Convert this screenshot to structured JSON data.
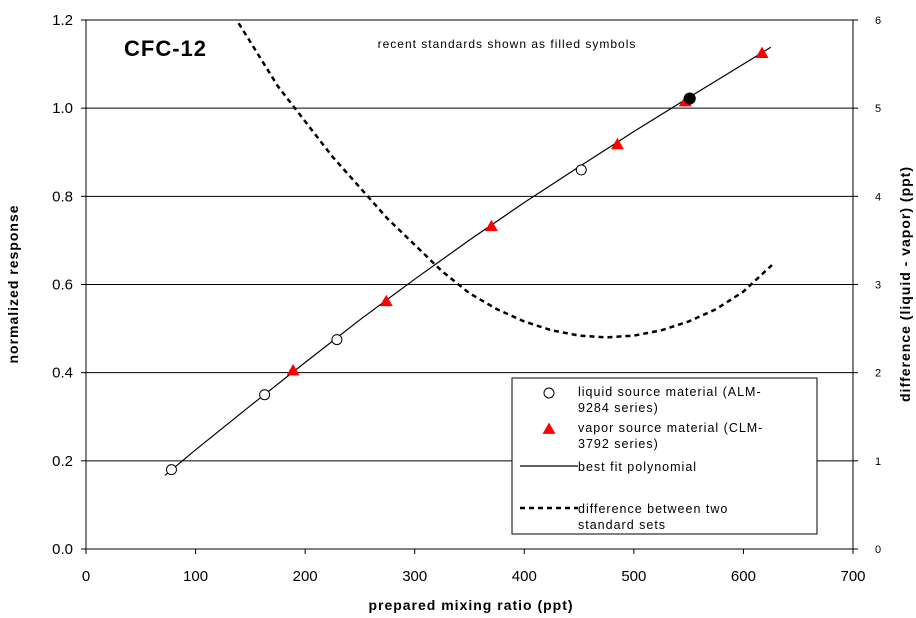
{
  "chart_data": {
    "type": "scatter",
    "title": "CFC-12",
    "annotation": "recent standards shown as filled symbols",
    "xlabel": "prepared mixing ratio (ppt)",
    "ylabel": "normalized response",
    "y2label": "difference (liquid - vapor) (ppt)",
    "xlim": [
      0,
      700
    ],
    "ylim": [
      0,
      1.2
    ],
    "y2lim": [
      0,
      6
    ],
    "x_ticks": [
      "0",
      "100",
      "200",
      "300",
      "400",
      "500",
      "600",
      "700"
    ],
    "y_ticks": [
      "0.0",
      "0.2",
      "0.4",
      "0.6",
      "0.8",
      "1.0",
      "1.2"
    ],
    "y2_ticks": [
      "0",
      "1",
      "2",
      "3",
      "4",
      "5",
      "6"
    ],
    "grid": "horizontal",
    "legend_position": "bottom-right",
    "series": [
      {
        "name": "liquid source material (ALM-9284 series)",
        "marker": "open-circle",
        "points": [
          [
            78,
            0.18
          ],
          [
            163,
            0.35
          ],
          [
            229,
            0.475
          ],
          [
            452,
            0.86
          ]
        ]
      },
      {
        "name": "vapor source material (CLM-3792 series)",
        "marker": "filled-triangle",
        "color": "#ff0000",
        "points": [
          [
            189,
            0.405
          ],
          [
            274,
            0.562
          ],
          [
            370,
            0.732
          ],
          [
            485,
            0.918
          ],
          [
            547,
            1.015
          ],
          [
            617,
            1.125
          ]
        ]
      },
      {
        "name": "",
        "marker": "filled-circle",
        "points": [
          [
            551,
            1.022
          ]
        ]
      },
      {
        "name": "best fit polynomial",
        "line": "solid",
        "axis": "left",
        "points": [
          [
            72,
            0.167
          ],
          [
            100,
            0.225
          ],
          [
            150,
            0.325
          ],
          [
            200,
            0.423
          ],
          [
            250,
            0.52
          ],
          [
            300,
            0.612
          ],
          [
            350,
            0.701
          ],
          [
            400,
            0.786
          ],
          [
            450,
            0.867
          ],
          [
            500,
            0.947
          ],
          [
            550,
            1.024
          ],
          [
            600,
            1.1
          ],
          [
            625,
            1.138
          ]
        ]
      },
      {
        "name": "difference between two standard sets",
        "line": "dashed",
        "axis": "right",
        "points": [
          [
            135,
            6.05
          ],
          [
            150,
            5.75
          ],
          [
            175,
            5.25
          ],
          [
            200,
            4.85
          ],
          [
            225,
            4.45
          ],
          [
            250,
            4.1
          ],
          [
            275,
            3.75
          ],
          [
            300,
            3.45
          ],
          [
            325,
            3.15
          ],
          [
            350,
            2.9
          ],
          [
            375,
            2.72
          ],
          [
            400,
            2.58
          ],
          [
            425,
            2.48
          ],
          [
            450,
            2.42
          ],
          [
            475,
            2.4
          ],
          [
            500,
            2.42
          ],
          [
            525,
            2.48
          ],
          [
            550,
            2.58
          ],
          [
            575,
            2.72
          ],
          [
            600,
            2.92
          ],
          [
            626,
            3.22
          ]
        ]
      }
    ],
    "legend": [
      {
        "marker": "open-circle",
        "text": [
          "liquid source material (ALM-",
          "9284 series)"
        ]
      },
      {
        "marker": "filled-triangle",
        "color": "#ff0000",
        "text": [
          "vapor source material (CLM-",
          "3792 series)"
        ]
      },
      {
        "marker": "solid-line",
        "text": [
          "best fit polynomial"
        ]
      },
      {
        "marker": "dashed-line",
        "text": [
          "difference between two",
          "standard sets"
        ]
      }
    ]
  }
}
